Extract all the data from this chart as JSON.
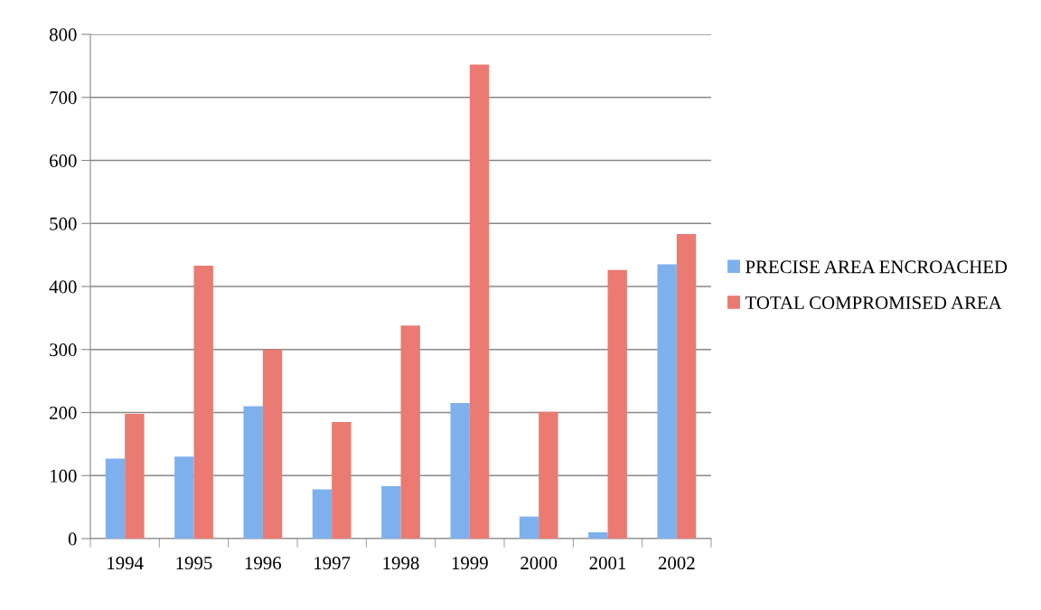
{
  "chart_data": {
    "type": "bar",
    "categories": [
      "1994",
      "1995",
      "1996",
      "1997",
      "1998",
      "1999",
      "2000",
      "2001",
      "2002"
    ],
    "series": [
      {
        "name": "PRECISE AREA ENCROACHED",
        "color": "#7fb0ee",
        "values": [
          127,
          130,
          210,
          78,
          83,
          215,
          35,
          10,
          435
        ]
      },
      {
        "name": "TOTAL COMPROMISED AREA",
        "color": "#ea7a72",
        "values": [
          198,
          433,
          300,
          185,
          338,
          752,
          201,
          426,
          483
        ]
      }
    ],
    "ylim": [
      0,
      800
    ],
    "yticks": [
      0,
      100,
      200,
      300,
      400,
      500,
      600,
      700,
      800
    ],
    "grid": "y",
    "legend": "right"
  }
}
